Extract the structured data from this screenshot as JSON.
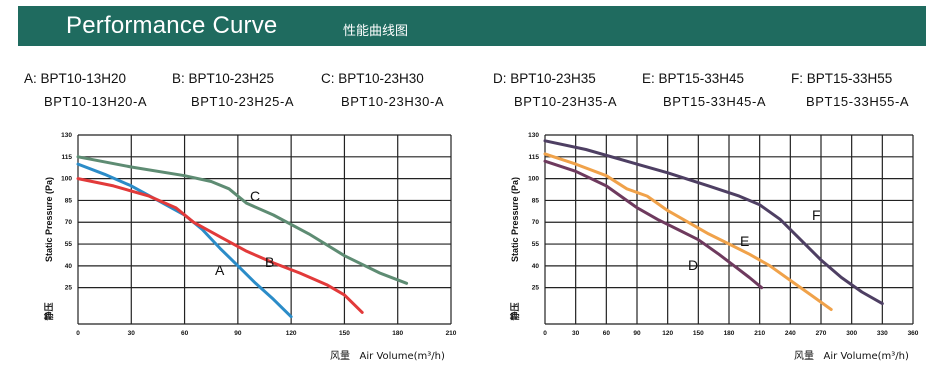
{
  "header": {
    "title": "Performance Curve",
    "subtitle": "性能曲线图",
    "bg_color": "#1f6b5f"
  },
  "chart_data": [
    {
      "type": "line",
      "models": [
        {
          "letter": "A",
          "name": "A: BPT10-13H20",
          "alt": "BPT10-13H20-A"
        },
        {
          "letter": "B",
          "name": "B: BPT10-23H25",
          "alt": "BPT10-23H25-A"
        },
        {
          "letter": "C",
          "name": "C: BPT10-23H30",
          "alt": "BPT10-23H30-A"
        }
      ],
      "ylabel": "Static Pressure (Pa)",
      "ylabel_cn": "静压",
      "xlabel_cn": "风量",
      "xlabel": "Air Volume(m³/h)",
      "xlim": [
        0,
        210
      ],
      "ylim": [
        0,
        130
      ],
      "xticks": [
        0,
        30,
        60,
        90,
        120,
        150,
        180,
        210
      ],
      "yticks": [
        25,
        40,
        55,
        70,
        85,
        100,
        115,
        130
      ],
      "grid": true,
      "series": [
        {
          "name": "A",
          "color": "#2b8cc8",
          "x": [
            0,
            15,
            30,
            45,
            60,
            70,
            80,
            90,
            100,
            110,
            120
          ],
          "y": [
            110,
            103,
            95,
            85,
            75,
            65,
            52,
            40,
            28,
            17,
            5
          ]
        },
        {
          "name": "B",
          "color": "#e23a3a",
          "x": [
            0,
            20,
            40,
            55,
            65,
            80,
            95,
            110,
            125,
            140,
            150,
            160
          ],
          "y": [
            100,
            95,
            88,
            80,
            70,
            60,
            50,
            42,
            35,
            27,
            20,
            8
          ]
        },
        {
          "name": "C",
          "color": "#5e8c73",
          "x": [
            0,
            30,
            60,
            75,
            85,
            95,
            110,
            130,
            150,
            170,
            185
          ],
          "y": [
            115,
            108,
            102,
            98,
            93,
            83,
            75,
            62,
            47,
            35,
            28
          ]
        }
      ]
    },
    {
      "type": "line",
      "models": [
        {
          "letter": "D",
          "name": "D: BPT10-23H35",
          "alt": "BPT10-23H35-A"
        },
        {
          "letter": "E",
          "name": "E: BPT15-33H45",
          "alt": "BPT15-33H45-A"
        },
        {
          "letter": "F",
          "name": "F: BPT15-33H55",
          "alt": "BPT15-33H55-A"
        }
      ],
      "ylabel": "Static Pressure (Pa)",
      "ylabel_cn": "静压",
      "xlabel_cn": "风量",
      "xlabel": "Air Volume(m³/h)",
      "xlim": [
        0,
        360
      ],
      "ylim": [
        0,
        130
      ],
      "xticks": [
        0,
        30,
        60,
        90,
        120,
        150,
        180,
        210,
        240,
        270,
        300,
        330,
        360
      ],
      "yticks": [
        25,
        40,
        55,
        70,
        85,
        100,
        115,
        130
      ],
      "grid": true,
      "series": [
        {
          "name": "D",
          "color": "#6e3a5e",
          "x": [
            0,
            30,
            60,
            90,
            110,
            130,
            150,
            170,
            185,
            200,
            212
          ],
          "y": [
            112,
            105,
            95,
            80,
            72,
            65,
            58,
            48,
            40,
            32,
            25
          ]
        },
        {
          "name": "E",
          "color": "#f0a24a",
          "x": [
            0,
            30,
            60,
            80,
            100,
            120,
            140,
            160,
            180,
            200,
            220,
            240,
            260,
            280
          ],
          "y": [
            117,
            110,
            102,
            93,
            88,
            78,
            70,
            62,
            55,
            48,
            40,
            30,
            20,
            10
          ]
        },
        {
          "name": "F",
          "color": "#4e3f63",
          "x": [
            0,
            40,
            80,
            120,
            160,
            190,
            210,
            230,
            250,
            270,
            290,
            310,
            330
          ],
          "y": [
            126,
            120,
            112,
            104,
            95,
            88,
            82,
            72,
            58,
            44,
            32,
            22,
            14
          ]
        }
      ]
    }
  ]
}
